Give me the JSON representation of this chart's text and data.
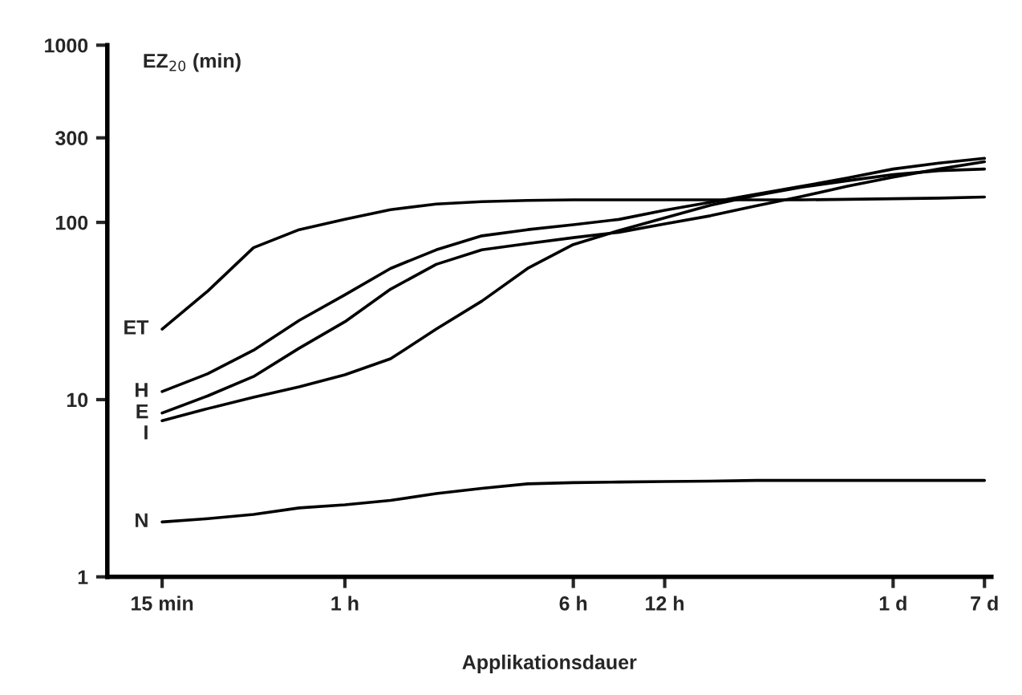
{
  "chart_data": {
    "type": "line",
    "ylabel": "EZ$_{20}$ (min)",
    "xlabel": "Applikationsdauer",
    "log": "y",
    "grid": false,
    "legend": false,
    "marker": "none",
    "line_style": "solid",
    "categories": [
      "15 min",
      null,
      null,
      null,
      "1 h",
      null,
      null,
      null,
      null,
      "6 h",
      null,
      "12 h",
      null,
      null,
      null,
      null,
      "1 d",
      null,
      "7 d"
    ],
    "ylim": [
      1,
      1000
    ],
    "yticks": [
      1,
      10,
      100,
      300,
      1000
    ],
    "series": [
      {
        "name": "ET",
        "color": "#000000",
        "values": [
          25,
          41,
          72,
          91,
          104,
          118,
          127,
          131,
          133,
          134,
          134,
          134,
          134,
          134,
          134,
          135,
          136,
          137,
          139
        ]
      },
      {
        "name": "H",
        "color": "#000000",
        "values": [
          11.1,
          14,
          19,
          28,
          39,
          55,
          70,
          84,
          91,
          97,
          104,
          117,
          130,
          144,
          160,
          178,
          200,
          216,
          230
        ]
      },
      {
        "name": "E",
        "color": "#000000",
        "values": [
          8.4,
          10.5,
          13.5,
          19.5,
          27.5,
          42,
          58,
          70,
          76,
          82,
          88,
          98,
          109,
          124,
          140,
          160,
          180,
          200,
          220
        ]
      },
      {
        "name": "I",
        "color": "#000000",
        "values": [
          7.6,
          8.9,
          10.3,
          11.8,
          13.8,
          17,
          25,
          36,
          55,
          75,
          90,
          106,
          125,
          142,
          158,
          172,
          186,
          196,
          200
        ]
      },
      {
        "name": "N",
        "color": "#000000",
        "values": [
          2.04,
          2.13,
          2.25,
          2.45,
          2.55,
          2.7,
          2.95,
          3.16,
          3.35,
          3.4,
          3.43,
          3.45,
          3.47,
          3.5,
          3.5,
          3.5,
          3.5,
          3.5,
          3.5
        ]
      }
    ]
  }
}
